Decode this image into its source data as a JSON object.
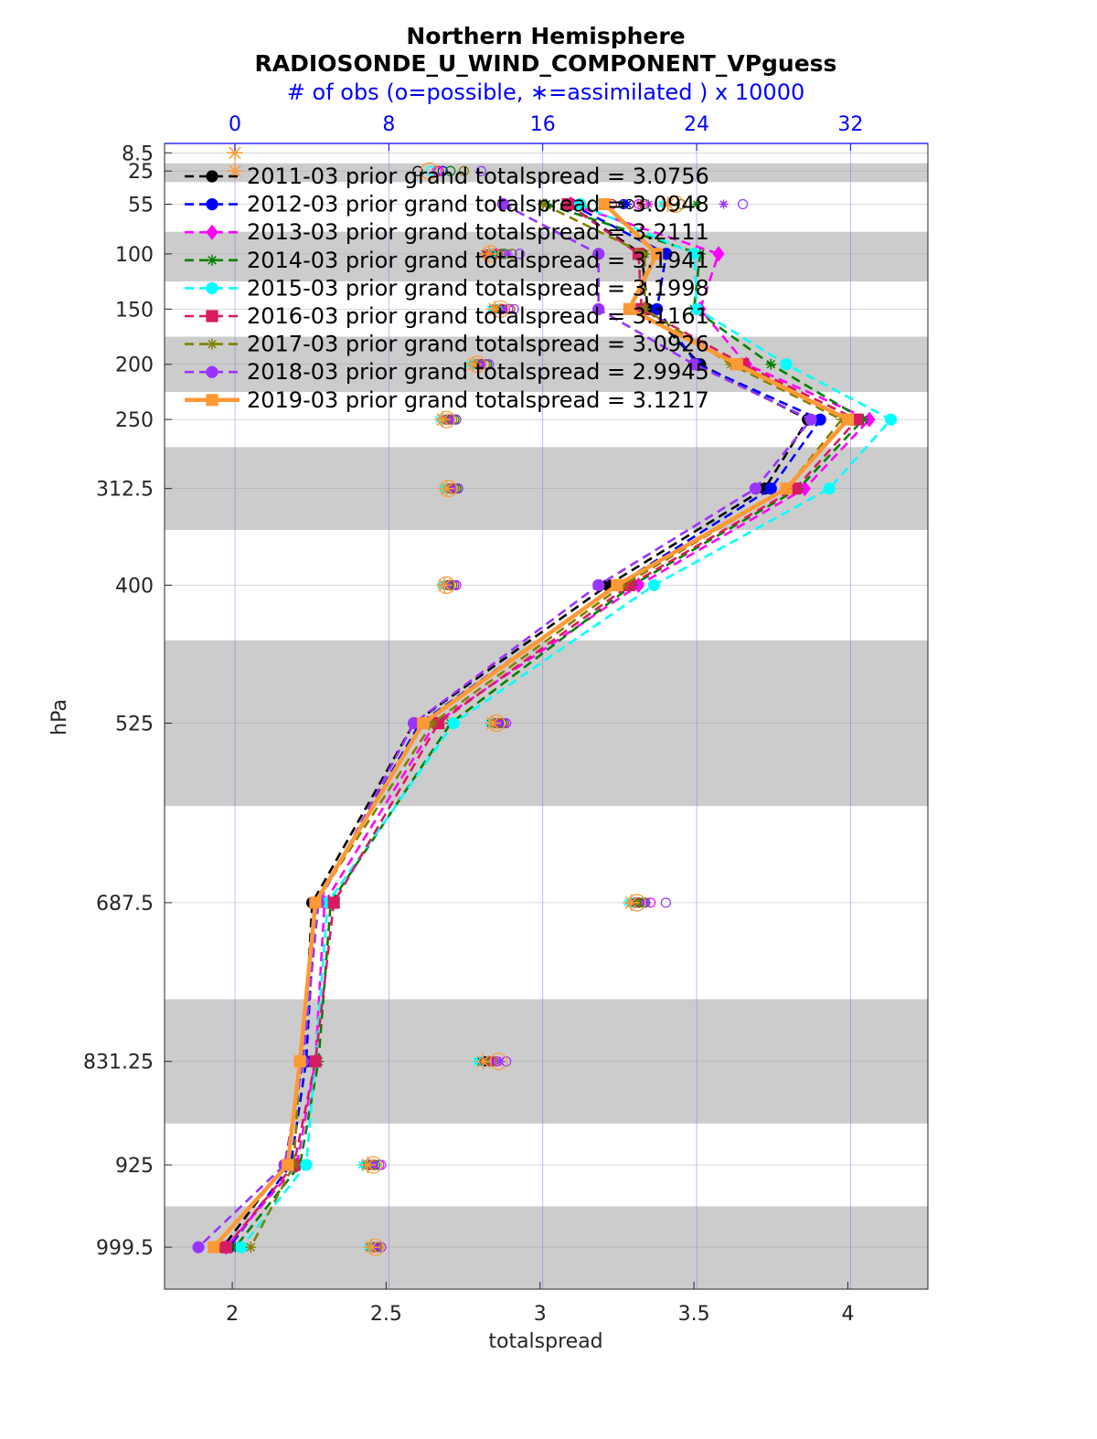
{
  "chart_data": {
    "type": "line",
    "title": "Northern Hemisphere",
    "subtitle": "RADIOSONDE_U_WIND_COMPONENT_VPguess",
    "top_axis_label": "# of obs (o=possible, ∗=assimilated ) x 10000",
    "xlabel": "totalspread",
    "ylabel": "hPa",
    "xlim": [
      1.78,
      4.26
    ],
    "top_xlim": [
      -3.66,
      36.02
    ],
    "x_ticks": [
      "2",
      "2.5",
      "3",
      "3.5",
      "4"
    ],
    "x_tick_values": [
      2,
      2.5,
      3,
      3.5,
      4
    ],
    "top_ticks": [
      "0",
      "8",
      "16",
      "24",
      "32"
    ],
    "top_tick_values": [
      0,
      8,
      16,
      24,
      32
    ],
    "y_reversed": true,
    "levels": [
      "8.5",
      "25",
      "55",
      "100",
      "150",
      "200",
      "250",
      "312.5",
      "400",
      "525",
      "687.5",
      "831.25",
      "925",
      "999.5"
    ],
    "level_values": [
      8.5,
      25,
      55,
      100,
      150,
      200,
      250,
      312.5,
      400,
      525,
      687.5,
      831.25,
      925,
      999.5
    ],
    "shaded_bands": [
      [
        18,
        35
      ],
      [
        80,
        125
      ],
      [
        175,
        225
      ],
      [
        275,
        350
      ],
      [
        450,
        600
      ],
      [
        775,
        887.5
      ],
      [
        962.5,
        1037.5
      ]
    ],
    "y_range": [
      0,
      1037.5
    ],
    "grid": true,
    "legend_position": "top-left",
    "series": [
      {
        "name": "2011-03 prior grand totalspread = 3.0756",
        "color": "#000000",
        "marker": "circle",
        "style": "dashed",
        "spread": [
          null,
          null,
          3.09,
          3.33,
          3.35,
          3.52,
          3.87,
          3.73,
          3.22,
          2.59,
          2.26,
          2.23,
          2.17,
          1.97
        ],
        "possible": [
          null,
          9.5,
          20.5,
          13.3,
          13.8,
          12.6,
          11.0,
          11.2,
          11.1,
          13.5,
          20.8,
          13.0,
          7.0,
          7.2
        ],
        "assimilated": [
          null,
          null,
          20.2,
          13.0,
          13.4,
          12.4,
          10.8,
          11.0,
          10.9,
          13.3,
          20.6,
          12.8,
          6.8,
          7.0
        ]
      },
      {
        "name": "2012-03 prior grand totalspread = 3.0948",
        "color": "#0000ff",
        "marker": "circle",
        "style": "dashed",
        "spread": [
          null,
          null,
          3.1,
          3.41,
          3.38,
          3.51,
          3.91,
          3.75,
          3.25,
          2.61,
          2.27,
          2.24,
          2.19,
          1.99
        ],
        "possible": [
          null,
          10.8,
          20.2,
          13.6,
          13.9,
          12.8,
          11.2,
          11.3,
          11.3,
          13.7,
          21.0,
          13.2,
          7.2,
          7.3
        ],
        "assimilated": [
          null,
          null,
          20.4,
          13.2,
          13.5,
          12.5,
          10.9,
          11.1,
          11.0,
          13.4,
          20.7,
          13.0,
          6.9,
          7.1
        ]
      },
      {
        "name": "2013-03 prior grand totalspread = 3.2111",
        "color": "#ff00ff",
        "marker": "diamond",
        "style": "dashed",
        "spread": [
          null,
          null,
          3.1,
          3.58,
          3.52,
          3.67,
          4.07,
          3.86,
          3.32,
          2.66,
          2.3,
          2.27,
          2.21,
          1.98
        ],
        "possible": [
          null,
          10.5,
          21.0,
          13.8,
          14.2,
          13.0,
          11.5,
          11.6,
          11.5,
          14.0,
          21.6,
          13.6,
          7.5,
          7.6
        ],
        "assimilated": [
          null,
          null,
          21.5,
          13.4,
          13.7,
          12.6,
          11.0,
          11.1,
          11.1,
          13.5,
          20.9,
          13.2,
          7.0,
          7.1
        ]
      },
      {
        "name": "2014-03 prior grand totalspread = 3.1941",
        "color": "#008000",
        "marker": "star",
        "style": "dashed",
        "spread": [
          null,
          null,
          3.02,
          3.52,
          3.5,
          3.75,
          4.05,
          3.84,
          3.3,
          2.71,
          2.32,
          2.28,
          2.22,
          2.01
        ],
        "possible": [
          null,
          11.2,
          21.3,
          14.0,
          14.3,
          13.1,
          11.4,
          11.5,
          11.4,
          13.9,
          21.3,
          13.4,
          7.3,
          7.4
        ],
        "assimilated": [
          null,
          null,
          24.0,
          13.5,
          13.8,
          12.7,
          11.1,
          11.2,
          11.2,
          13.6,
          21.0,
          13.1,
          7.0,
          7.2
        ]
      },
      {
        "name": "2015-03 prior grand totalspread = 3.1998",
        "color": "#00ffff",
        "marker": "circle",
        "style": "dashed",
        "spread": [
          null,
          null,
          3.13,
          3.5,
          3.51,
          3.8,
          4.14,
          3.94,
          3.37,
          2.72,
          2.31,
          2.27,
          2.24,
          2.03
        ],
        "possible": [
          null,
          10.2,
          19.0,
          13.3,
          13.6,
          12.4,
          10.8,
          10.9,
          10.9,
          13.4,
          20.6,
          12.7,
          6.8,
          7.1
        ],
        "assimilated": [
          null,
          null,
          22.2,
          13.1,
          13.3,
          12.2,
          10.6,
          10.8,
          10.7,
          13.2,
          20.4,
          12.6,
          6.6,
          6.9
        ]
      },
      {
        "name": "2016-03 prior grand totalspread = 3.1161",
        "color": "#d81b60",
        "marker": "square",
        "style": "dashed",
        "spread": [
          null,
          null,
          3.09,
          3.32,
          3.33,
          3.66,
          4.03,
          3.83,
          3.29,
          2.67,
          2.33,
          2.27,
          2.2,
          1.98
        ],
        "possible": [
          null,
          10.6,
          19.6,
          13.5,
          13.9,
          12.7,
          11.1,
          11.2,
          11.2,
          13.6,
          20.9,
          13.3,
          7.1,
          7.3
        ],
        "assimilated": [
          null,
          null,
          21.1,
          13.1,
          13.5,
          12.4,
          10.9,
          11.0,
          10.9,
          13.4,
          20.6,
          12.9,
          6.9,
          7.1
        ]
      },
      {
        "name": "2017-03 prior grand totalspread = 3.0926",
        "color": "#808000",
        "marker": "star",
        "style": "dashed",
        "spread": [
          null,
          null,
          3.01,
          3.34,
          3.34,
          3.62,
          3.98,
          3.8,
          3.27,
          2.65,
          2.27,
          2.22,
          2.2,
          2.06
        ],
        "possible": [
          null,
          11.9,
          23.2,
          14.4,
          14.3,
          13.0,
          11.3,
          11.4,
          11.3,
          13.8,
          21.2,
          13.4,
          7.2,
          7.4
        ],
        "assimilated": [
          null,
          null,
          22.5,
          13.8,
          13.6,
          12.6,
          11.0,
          11.1,
          11.0,
          13.5,
          20.9,
          13.1,
          6.9,
          7.1
        ]
      },
      {
        "name": "2018-03 prior grand totalspread = 2.9945",
        "color": "#9933ff",
        "marker": "circle",
        "style": "dashed",
        "spread": [
          null,
          null,
          2.88,
          3.19,
          3.19,
          3.5,
          3.88,
          3.7,
          3.19,
          2.59,
          2.28,
          2.23,
          2.17,
          1.89
        ],
        "possible": [
          null,
          12.8,
          26.4,
          14.8,
          14.5,
          13.2,
          11.5,
          11.6,
          11.4,
          14.1,
          22.4,
          14.1,
          7.6,
          7.6
        ],
        "assimilated": [
          null,
          null,
          25.4,
          14.2,
          14.0,
          12.8,
          11.2,
          11.3,
          11.1,
          13.7,
          21.4,
          13.8,
          7.2,
          7.3
        ]
      },
      {
        "name": "2019-03 prior grand totalspread = 3.1217",
        "color": "#ff9933",
        "marker": "square",
        "style": "solid",
        "spread": [
          null,
          null,
          3.21,
          3.38,
          3.29,
          3.64,
          4.0,
          3.8,
          3.25,
          2.62,
          2.27,
          2.22,
          2.18,
          1.94
        ],
        "possible": [
          null,
          10.1,
          22.9,
          13.3,
          13.8,
          12.6,
          11.0,
          11.1,
          11.0,
          13.6,
          20.9,
          13.7,
          7.2,
          7.3
        ],
        "assimilated": [
          0,
          0,
          22.5,
          13.2,
          13.5,
          12.4,
          10.8,
          11.0,
          10.9,
          13.4,
          20.6,
          12.9,
          6.9,
          7.1
        ]
      }
    ]
  }
}
